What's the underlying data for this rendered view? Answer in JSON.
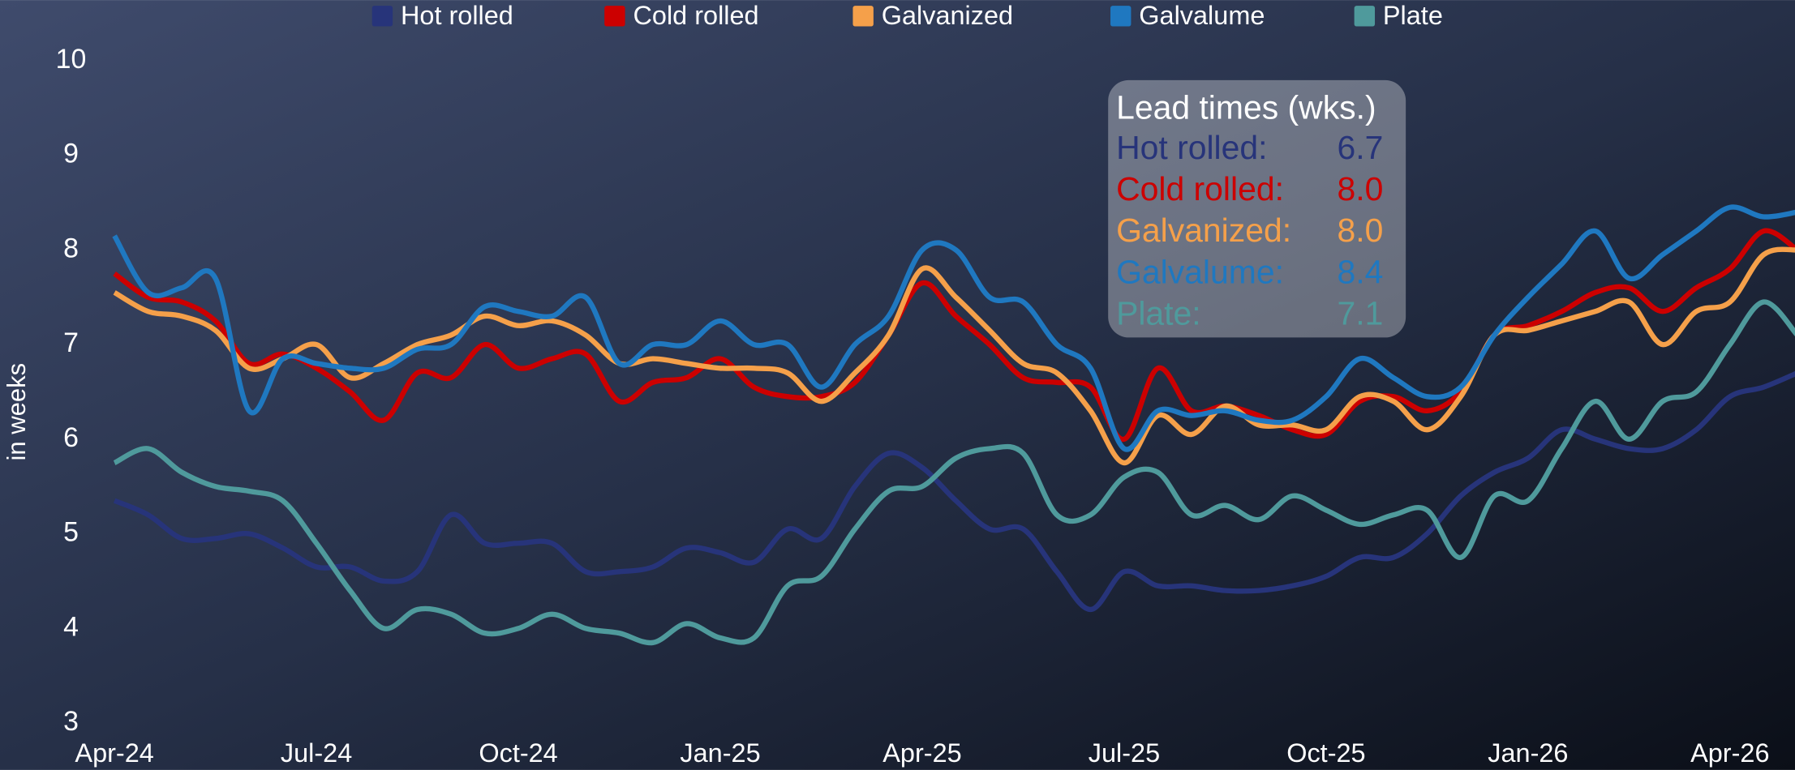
{
  "chart_data": {
    "type": "line",
    "y_label": "in weeks",
    "categories": [
      "Apr-24",
      null,
      null,
      null,
      null,
      null,
      "Jul-24",
      null,
      null,
      null,
      null,
      null,
      "Oct-24",
      null,
      null,
      null,
      null,
      null,
      "Jan-25",
      null,
      null,
      null,
      null,
      null,
      "Apr-25",
      null,
      null,
      null,
      null,
      null,
      "Jul-25",
      null,
      null,
      null,
      null,
      null,
      "Oct-25",
      null,
      null,
      null,
      null,
      null,
      "Jan-26",
      null,
      null,
      null,
      null,
      null,
      "Apr-26",
      null,
      null
    ],
    "ylim": [
      3,
      10
    ],
    "yticks": [
      3,
      4,
      5,
      6,
      7,
      8,
      9,
      10
    ],
    "legend": "top",
    "series": [
      {
        "name": "Hot rolled",
        "color": "#27347a",
        "values": [
          5.35,
          5.2,
          4.95,
          4.95,
          5.0,
          4.85,
          4.65,
          4.65,
          4.5,
          4.6,
          5.2,
          4.9,
          4.9,
          4.9,
          4.6,
          4.6,
          4.65,
          4.85,
          4.8,
          4.7,
          5.05,
          4.95,
          5.5,
          5.85,
          5.7,
          5.35,
          5.05,
          5.05,
          4.6,
          4.2,
          4.6,
          4.45,
          4.45,
          4.4,
          4.4,
          4.45,
          4.55,
          4.75,
          4.75,
          5.0,
          5.4,
          5.65,
          5.8,
          6.1,
          6.0,
          5.9,
          5.9,
          6.1,
          6.45,
          6.55,
          6.7
        ]
      },
      {
        "name": "Cold rolled",
        "color": "#cc0000",
        "values": [
          7.75,
          7.5,
          7.45,
          7.25,
          6.8,
          6.9,
          6.75,
          6.5,
          6.2,
          6.7,
          6.65,
          7.0,
          6.75,
          6.85,
          6.9,
          6.4,
          6.6,
          6.65,
          6.85,
          6.55,
          6.45,
          6.45,
          6.6,
          7.1,
          7.65,
          7.3,
          7.0,
          6.65,
          6.6,
          6.55,
          6.0,
          6.75,
          6.3,
          6.35,
          6.25,
          6.1,
          6.05,
          6.4,
          6.45,
          6.3,
          6.5,
          7.1,
          7.2,
          7.35,
          7.55,
          7.6,
          7.35,
          7.6,
          7.8,
          8.2,
          8.0
        ]
      },
      {
        "name": "Galvanized",
        "color": "#f5a04a",
        "values": [
          7.55,
          7.35,
          7.3,
          7.15,
          6.75,
          6.85,
          7.0,
          6.65,
          6.8,
          7.0,
          7.1,
          7.3,
          7.2,
          7.25,
          7.1,
          6.8,
          6.85,
          6.8,
          6.75,
          6.75,
          6.7,
          6.4,
          6.7,
          7.1,
          7.8,
          7.5,
          7.15,
          6.8,
          6.7,
          6.3,
          5.75,
          6.25,
          6.05,
          6.35,
          6.15,
          6.15,
          6.1,
          6.45,
          6.4,
          6.1,
          6.45,
          7.1,
          7.15,
          7.25,
          7.35,
          7.45,
          7.0,
          7.35,
          7.45,
          7.95,
          8.0
        ]
      },
      {
        "name": "Galvalume",
        "color": "#1f78c0",
        "values": [
          8.15,
          7.55,
          7.6,
          7.7,
          6.3,
          6.85,
          6.8,
          6.75,
          6.75,
          6.95,
          7.0,
          7.4,
          7.35,
          7.3,
          7.5,
          6.8,
          7.0,
          7.0,
          7.25,
          7.0,
          7.0,
          6.55,
          7.0,
          7.3,
          8.0,
          8.0,
          7.5,
          7.45,
          7.0,
          6.75,
          5.9,
          6.3,
          6.25,
          6.3,
          6.2,
          6.2,
          6.45,
          6.85,
          6.65,
          6.45,
          6.55,
          7.1,
          7.5,
          7.85,
          8.2,
          7.7,
          7.95,
          8.2,
          8.45,
          8.35,
          8.4
        ]
      },
      {
        "name": "Plate",
        "color": "#4f9a9c",
        "values": [
          5.75,
          5.9,
          5.65,
          5.5,
          5.45,
          5.35,
          4.9,
          4.4,
          4.0,
          4.2,
          4.15,
          3.95,
          4.0,
          4.15,
          4.0,
          3.95,
          3.85,
          4.05,
          3.9,
          3.9,
          4.45,
          4.55,
          5.05,
          5.45,
          5.5,
          5.8,
          5.9,
          5.85,
          5.2,
          5.2,
          5.6,
          5.65,
          5.2,
          5.3,
          5.15,
          5.4,
          5.25,
          5.1,
          5.2,
          5.25,
          4.75,
          5.4,
          5.35,
          5.9,
          6.4,
          6.0,
          6.4,
          6.5,
          7.0,
          7.45,
          7.1
        ]
      }
    ]
  },
  "summary": {
    "title": "Lead times (wks.)",
    "rows": [
      {
        "label": "Hot rolled:",
        "value": "6.7"
      },
      {
        "label": "Cold rolled:",
        "value": "8.0"
      },
      {
        "label": "Galvanized:",
        "value": "8.0"
      },
      {
        "label": "Galvalume:",
        "value": "8.4"
      },
      {
        "label": "Plate:",
        "value": "7.1"
      }
    ]
  }
}
